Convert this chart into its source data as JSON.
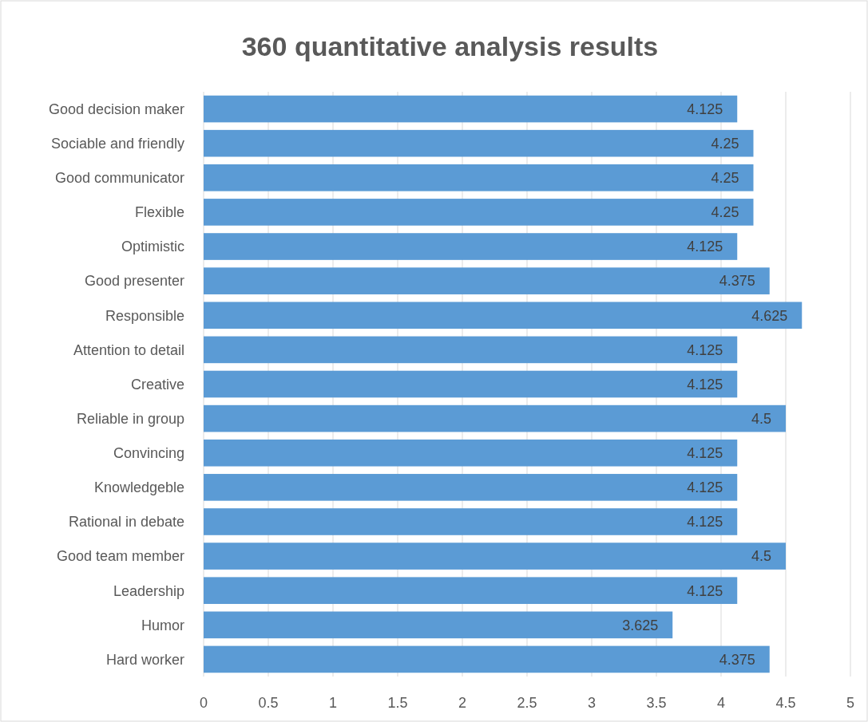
{
  "chart_data": {
    "type": "bar",
    "orientation": "horizontal",
    "title": "360 quantitative analysis results",
    "categories": [
      "Good decision maker",
      "Sociable and friendly",
      "Good communicator",
      "Flexible",
      "Optimistic",
      "Good presenter",
      "Responsible",
      "Attention to detail",
      "Creative",
      "Reliable in group",
      "Convincing",
      "Knowledgeble",
      "Rational in debate",
      "Good team member",
      "Leadership",
      "Humor",
      "Hard worker"
    ],
    "values": [
      4.125,
      4.25,
      4.25,
      4.25,
      4.125,
      4.375,
      4.625,
      4.125,
      4.125,
      4.5,
      4.125,
      4.125,
      4.125,
      4.5,
      4.125,
      3.625,
      4.375
    ],
    "color": "#5b9bd5",
    "xlim": [
      0,
      5
    ],
    "xticks": [
      0,
      0.5,
      1,
      1.5,
      2,
      2.5,
      3,
      3.5,
      4,
      4.5,
      5
    ],
    "grid": "x",
    "data_labels": true
  }
}
